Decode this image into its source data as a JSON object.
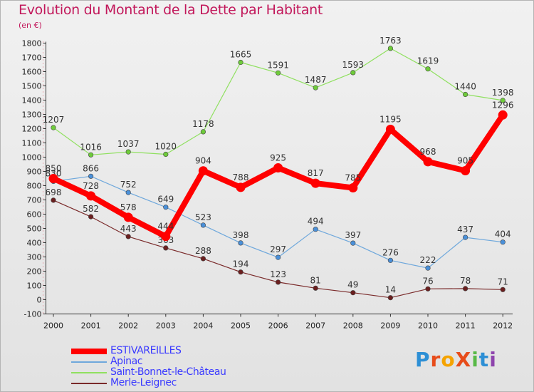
{
  "title": "Evolution du Montant de la Dette par Habitant",
  "subtitle": "(en €)",
  "logo": {
    "text": "ProXiti",
    "letter_colors": [
      "#2d8fd5",
      "#e74c1a",
      "#f5a300",
      "#e74c1a",
      "#58b947",
      "#2d8fd5",
      "#8e44ad"
    ]
  },
  "chart_data": {
    "type": "line",
    "categories": [
      "2000",
      "2001",
      "2002",
      "2003",
      "2004",
      "2005",
      "2006",
      "2007",
      "2008",
      "2009",
      "2010",
      "2011",
      "2012"
    ],
    "ylim": [
      -100,
      1800
    ],
    "yticks": [
      -100,
      0,
      100,
      200,
      300,
      400,
      500,
      600,
      700,
      800,
      900,
      1000,
      1100,
      1200,
      1300,
      1400,
      1500,
      1600,
      1700,
      1800
    ],
    "grid": false,
    "legend_position": "bottom-left",
    "series": [
      {
        "name": "Saint-Bonnet-le-Château",
        "color": "#90e060",
        "marker": "#6ecb3a",
        "width": 1.2,
        "values": [
          1207,
          1016,
          1037,
          1020,
          1178,
          1665,
          1591,
          1487,
          1593,
          1763,
          1619,
          1440,
          1398
        ]
      },
      {
        "name": "Apinac",
        "color": "#6fa8dc",
        "marker": "#4a90d9",
        "width": 1.2,
        "values": [
          830,
          866,
          752,
          649,
          523,
          398,
          297,
          494,
          397,
          276,
          222,
          437,
          404
        ]
      },
      {
        "name": "Merle-Leignec",
        "color": "#7a2a2a",
        "marker": "#6b1f1f",
        "width": 1.2,
        "values": [
          698,
          582,
          443,
          363,
          288,
          194,
          123,
          81,
          49,
          14,
          76,
          78,
          71
        ]
      },
      {
        "name": "ESTIVAREILLES",
        "color": "#ff0000",
        "marker": "#ff0000",
        "width": 8,
        "values": [
          850,
          728,
          578,
          444,
          904,
          788,
          925,
          817,
          785,
          1195,
          968,
          905,
          1296
        ]
      }
    ],
    "legend_order": [
      "ESTIVAREILLES",
      "Apinac",
      "Saint-Bonnet-le-Château",
      "Merle-Leignec"
    ]
  }
}
